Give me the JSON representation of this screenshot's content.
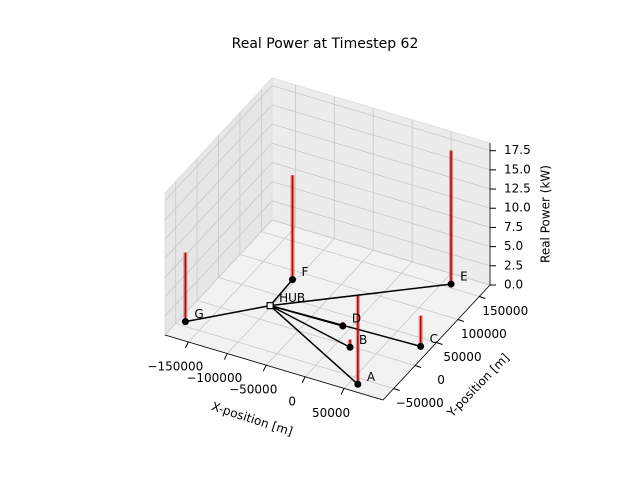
{
  "chart_data": {
    "type": "scatter3d",
    "title": "Real Power at Timestep 62",
    "xlabel": "X-position [m]",
    "ylabel": "Y-position [m]",
    "zlabel": "Real Power (kW)",
    "xlim": [
      -180000,
      100000
    ],
    "ylim": [
      -75000,
      175000
    ],
    "zlim": [
      0,
      18.5
    ],
    "xticks": [
      {
        "value": -150000,
        "label": "−150000"
      },
      {
        "value": -100000,
        "label": "−100000"
      },
      {
        "value": -50000,
        "label": "−50000"
      },
      0,
      50000
    ],
    "yticks": [
      {
        "value": -50000,
        "label": "−50000"
      },
      0,
      50000,
      100000,
      150000
    ],
    "zticks": [
      {
        "value": 0,
        "label": "0.0"
      },
      2.5,
      {
        "value": 5,
        "label": "5.0"
      },
      7.5,
      {
        "value": 10,
        "label": "10.0"
      },
      12.5,
      {
        "value": 15,
        "label": "15.0"
      },
      17.5
    ],
    "grid": true,
    "spike_color": "#c00000",
    "edge_color": "#000000",
    "marker_color": "#000000",
    "hub": {
      "label": "HUB",
      "x": -101800,
      "y": 28300
    },
    "nodes": [
      {
        "label": "A",
        "x": 60000,
        "y": -61000,
        "power": 11.5
      },
      {
        "label": "B",
        "x": 17500,
        "y": -2000,
        "power": 1.0
      },
      {
        "label": "C",
        "x": 87700,
        "y": 35400,
        "power": 4.0
      },
      {
        "label": "D",
        "x": -9600,
        "y": 30500,
        "power": 0.5
      },
      {
        "label": "E",
        "x": 60000,
        "y": 156800,
        "power": 17.4
      },
      {
        "label": "F",
        "x": -103600,
        "y": 83900,
        "power": 13.6
      },
      {
        "label": "G",
        "x": -172000,
        "y": -41900,
        "power": 9.0
      }
    ]
  }
}
